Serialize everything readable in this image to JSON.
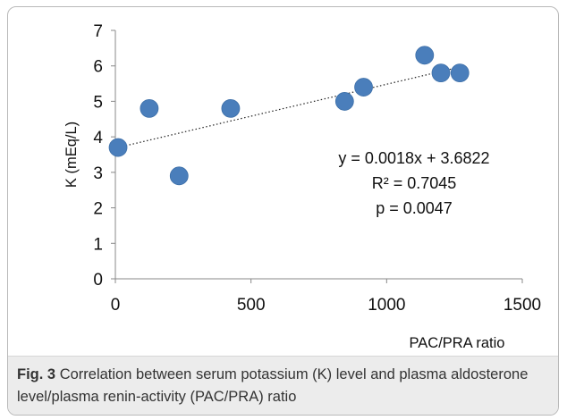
{
  "caption": {
    "label": "Fig. 3",
    "text": "Correlation between serum potassium (K) level and plasma aldosterone level/plasma renin-activity (PAC/PRA) ratio"
  },
  "chart_data": {
    "type": "scatter",
    "title": "",
    "xlabel": "PAC/PRA ratio",
    "ylabel": "K (mEq/L)",
    "xlim": [
      0,
      1500
    ],
    "ylim": [
      0,
      7
    ],
    "xticks": [
      0,
      500,
      1000,
      1500
    ],
    "yticks": [
      0,
      1,
      2,
      3,
      4,
      5,
      6,
      7
    ],
    "grid": false,
    "marker_color": "#4a7ebb",
    "points": [
      {
        "x": 10,
        "y": 3.7
      },
      {
        "x": 125,
        "y": 4.8
      },
      {
        "x": 235,
        "y": 2.9
      },
      {
        "x": 425,
        "y": 4.8
      },
      {
        "x": 845,
        "y": 5.0
      },
      {
        "x": 915,
        "y": 5.4
      },
      {
        "x": 1140,
        "y": 6.3
      },
      {
        "x": 1200,
        "y": 5.8
      },
      {
        "x": 1270,
        "y": 5.8
      }
    ],
    "trendline": {
      "slope": 0.0018,
      "intercept": 3.6822,
      "style": "dotted",
      "x_range": [
        0,
        1270
      ]
    },
    "annotations": [
      "y = 0.0018x + 3.6822",
      "R² = 0.7045",
      "p = 0.0047"
    ]
  }
}
